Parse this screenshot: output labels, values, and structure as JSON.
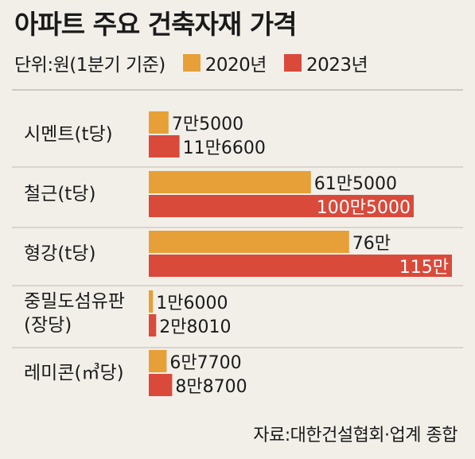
{
  "title": "아파트 주요 건축자재 가격",
  "unit": "단위:원(1분기 기준)",
  "legend": [
    {
      "label": "2020년",
      "color": "#e6a037"
    },
    {
      "label": "2023년",
      "color": "#d94a3b"
    }
  ],
  "source": "자료:대한건설협회·업계 종합",
  "chart_data": {
    "type": "bar",
    "orientation": "horizontal",
    "title": "아파트 주요 건축자재 가격",
    "categories": [
      [
        "시멘트(t당)"
      ],
      [
        "철근(t당)"
      ],
      [
        "형강(t당)"
      ],
      [
        "중밀도섬유판",
        "(장당)"
      ],
      [
        "레미콘(㎥당)"
      ]
    ],
    "series": [
      {
        "name": "2020년",
        "color": "#e6a037",
        "values": [
          75000,
          615000,
          760000,
          16000,
          67700
        ],
        "labels": [
          "7만5000",
          "61만5000",
          "76만",
          "1만6000",
          "6만7700"
        ]
      },
      {
        "name": "2023년",
        "color": "#d94a3b",
        "values": [
          116600,
          1005000,
          1150000,
          28010,
          88700
        ],
        "labels": [
          "11만6600",
          "100만5000",
          "115만",
          "2만8010",
          "8만8700"
        ]
      }
    ]
  }
}
